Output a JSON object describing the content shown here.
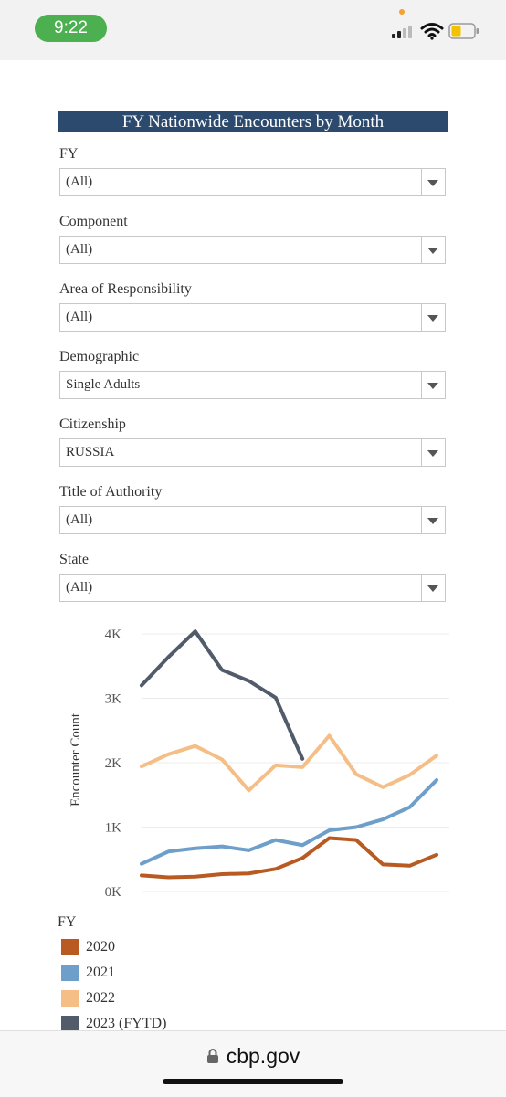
{
  "status_bar": {
    "time": "9:22",
    "icons": [
      "signal-icon",
      "wifi-icon",
      "battery-icon"
    ]
  },
  "dashboard": {
    "title": "FY Nationwide Encounters by Month",
    "filters": [
      {
        "label": "FY",
        "value": "(All)"
      },
      {
        "label": "Component",
        "value": "(All)"
      },
      {
        "label": "Area of Responsibility",
        "value": "(All)"
      },
      {
        "label": "Demographic",
        "value": "Single Adults"
      },
      {
        "label": "Citizenship",
        "value": "RUSSIA"
      },
      {
        "label": "Title of Authority",
        "value": "(All)"
      },
      {
        "label": "State",
        "value": "(All)"
      }
    ]
  },
  "chart_data": {
    "type": "line",
    "title": "",
    "xlabel": "",
    "ylabel": "Encounter Count",
    "ylim": [
      0,
      4000
    ],
    "y_ticks": [
      "0K",
      "1K",
      "2K",
      "3K",
      "4K"
    ],
    "grid": true,
    "legend_title": "FY",
    "legend_position": "bottom",
    "series": [
      {
        "name": "2020",
        "color": "#b85a22",
        "values": [
          250,
          220,
          230,
          270,
          280,
          350,
          520,
          830,
          800,
          420,
          400,
          570
        ]
      },
      {
        "name": "2021",
        "color": "#6e9fca",
        "values": [
          430,
          620,
          670,
          700,
          640,
          800,
          720,
          950,
          1000,
          1120,
          1310,
          1730
        ]
      },
      {
        "name": "2022",
        "color": "#f4be86",
        "values": [
          1940,
          2130,
          2260,
          2050,
          1570,
          1960,
          1930,
          2420,
          1820,
          1620,
          1810,
          2110
        ]
      },
      {
        "name": "2023 (FYTD)",
        "color": "#515b6a",
        "values": [
          3200,
          3640,
          4040,
          3440,
          3270,
          3010,
          2060
        ]
      }
    ]
  },
  "browser": {
    "url": "cbp.gov"
  }
}
